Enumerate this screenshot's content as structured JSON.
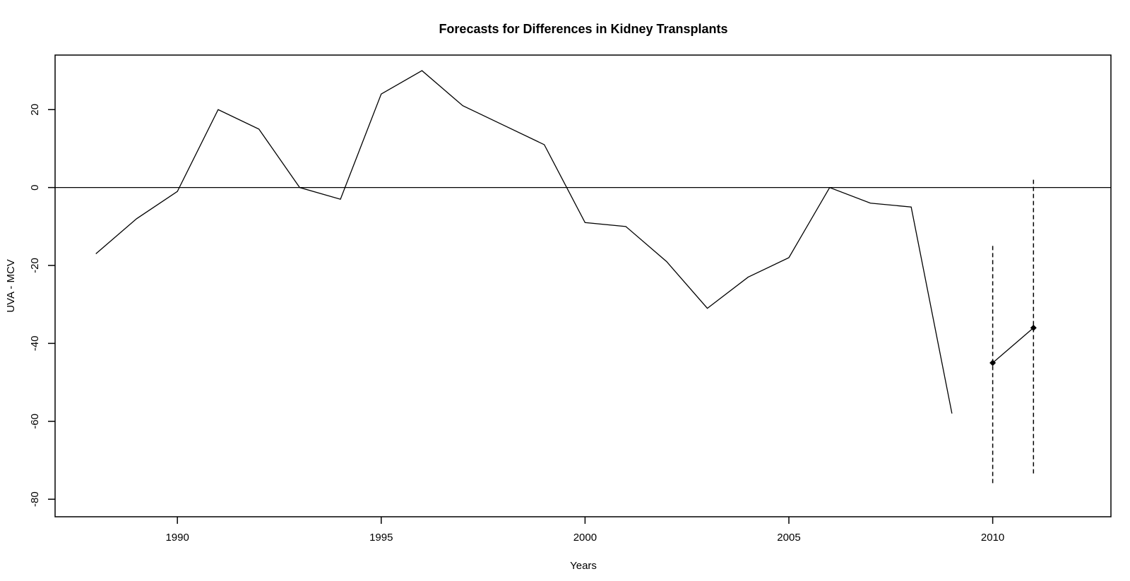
{
  "chart_data": {
    "type": "line",
    "title": "Forecasts for Differences in Kidney Transplants",
    "xlabel": "Years",
    "ylabel": "UVA - MCV",
    "xlim": [
      1987,
      2012.9
    ],
    "ylim": [
      -84.5,
      34
    ],
    "x_ticks": [
      1990,
      1995,
      2000,
      2005,
      2010
    ],
    "y_ticks": [
      20,
      0,
      -20,
      -40,
      -60,
      -80
    ],
    "grid": false,
    "legend": "none",
    "reference_line_y": 0,
    "series": [
      {
        "style": "solid",
        "x": [
          1988,
          1989,
          1990,
          1991,
          1992,
          1993,
          1994,
          1995,
          1996,
          1997,
          1998,
          1999,
          2000,
          2001,
          2002,
          2003,
          2004,
          2005,
          2006,
          2007,
          2008,
          2009
        ],
        "y": [
          -17,
          -8,
          -1,
          20,
          15,
          0,
          -3,
          24,
          30,
          21,
          16,
          11,
          -9,
          -10,
          -19,
          -31,
          -23,
          -18,
          0,
          -4,
          -5,
          -58
        ]
      },
      {
        "style": "solid-with-points",
        "x": [
          2010,
          2011
        ],
        "y": [
          -45,
          -36
        ]
      }
    ],
    "intervals": [
      {
        "x": 2010,
        "lower": -76,
        "upper": -15
      },
      {
        "x": 2011,
        "lower": -74,
        "upper": 2
      }
    ],
    "colors": {
      "line": "#000000",
      "background": "#ffffff"
    }
  }
}
